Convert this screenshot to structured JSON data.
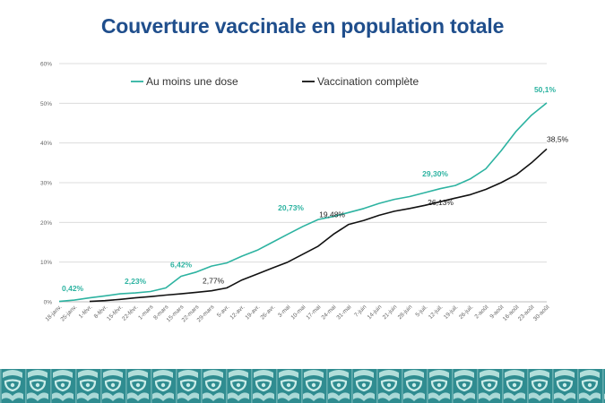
{
  "title": "Couverture vaccinale en population totale",
  "colors": {
    "title": "#1f4e8c",
    "series_dose": "#2db3a1",
    "series_complete": "#111111",
    "axis_text": "#666666",
    "grid": "#dcdcdc",
    "footer_bg": "#2f8c90",
    "footer_pattern": "#c9ece8"
  },
  "chart_data": {
    "type": "line",
    "title": "Couverture vaccinale en population totale",
    "xlabel": "",
    "ylabel": "",
    "ylim": [
      0,
      60
    ],
    "yticks": [
      "0%",
      "10%",
      "20%",
      "30%",
      "40%",
      "50%",
      "60%"
    ],
    "xticks": [
      "18-janv.",
      "25-janv.",
      "1-févr.",
      "8-févr.",
      "15-févr.",
      "22-févr.",
      "1-mars",
      "8-mars",
      "15-mars",
      "22-mars",
      "29-mars",
      "5-avr.",
      "12-avr.",
      "19-avr.",
      "26-avr.",
      "3-mai",
      "10-mai",
      "17-mai",
      "24-mai",
      "31-mai",
      "7-juin",
      "14-juin",
      "21-juin",
      "28-juin",
      "5-juil.",
      "12-juil.",
      "19-juil.",
      "26-juil.",
      "2-août",
      "9-août",
      "16-août",
      "23-août",
      "30-août"
    ],
    "grid": true,
    "legend": "top",
    "series": [
      {
        "name": "Au moins une dose",
        "color": "#2db3a1",
        "x": [
          "18-janv.",
          "25-janv.",
          "1-févr.",
          "8-févr.",
          "15-févr.",
          "22-févr.",
          "1-mars",
          "8-mars",
          "15-mars",
          "22-mars",
          "29-mars",
          "5-avr.",
          "12-avr.",
          "19-avr.",
          "26-avr.",
          "3-mai",
          "10-mai",
          "17-mai",
          "24-mai",
          "31-mai",
          "7-juin",
          "14-juin",
          "21-juin",
          "28-juin",
          "5-juil.",
          "12-juil.",
          "19-juil.",
          "26-juil.",
          "2-août",
          "9-août",
          "16-août",
          "23-août",
          "30-août"
        ],
        "values": [
          0.1,
          0.42,
          1.0,
          1.5,
          2.0,
          2.23,
          2.6,
          3.5,
          6.42,
          7.5,
          9.0,
          9.8,
          11.5,
          13.0,
          15.0,
          17.0,
          19.0,
          20.73,
          21.5,
          22.5,
          23.5,
          24.8,
          25.8,
          26.5,
          27.5,
          28.5,
          29.3,
          31.0,
          33.5,
          38.0,
          43.0,
          47.0,
          50.1
        ]
      },
      {
        "name": "Vaccination complète",
        "color": "#111111",
        "x": [
          "1-févr.",
          "8-févr.",
          "15-févr.",
          "22-févr.",
          "1-mars",
          "8-mars",
          "15-mars",
          "22-mars",
          "29-mars",
          "5-avr.",
          "12-avr.",
          "19-avr.",
          "26-avr.",
          "3-mai",
          "10-mai",
          "17-mai",
          "24-mai",
          "31-mai",
          "7-juin",
          "14-juin",
          "21-juin",
          "28-juin",
          "5-juil.",
          "12-juil.",
          "19-juil.",
          "26-juil.",
          "2-août",
          "9-août",
          "16-août",
          "23-août",
          "30-août"
        ],
        "values": [
          0.1,
          0.3,
          0.6,
          1.0,
          1.3,
          1.7,
          2.0,
          2.4,
          2.77,
          3.5,
          5.5,
          7.0,
          8.5,
          10.0,
          12.0,
          14.0,
          17.0,
          19.48,
          20.5,
          21.8,
          22.8,
          23.5,
          24.3,
          25.2,
          26.13,
          27.0,
          28.3,
          30.0,
          32.0,
          35.0,
          38.5
        ]
      }
    ],
    "annotations": [
      {
        "series": 0,
        "x": "25-janv.",
        "text": "0,42%"
      },
      {
        "series": 0,
        "x": "22-févr.",
        "text": "2,23%"
      },
      {
        "series": 0,
        "x": "15-mars",
        "text": "6,42%"
      },
      {
        "series": 0,
        "x": "17-mai",
        "text": "20,73%"
      },
      {
        "series": 0,
        "x": "19-juil.",
        "text": "29,30%"
      },
      {
        "series": 0,
        "x": "30-août",
        "text": "50,1%"
      },
      {
        "series": 1,
        "x": "29-mars",
        "text": "2,77%"
      },
      {
        "series": 1,
        "x": "31-mai",
        "text": "19,48%"
      },
      {
        "series": 1,
        "x": "19-juil.",
        "text": "26,13%"
      },
      {
        "series": 1,
        "x": "30-août",
        "text": "38,5%"
      }
    ]
  }
}
